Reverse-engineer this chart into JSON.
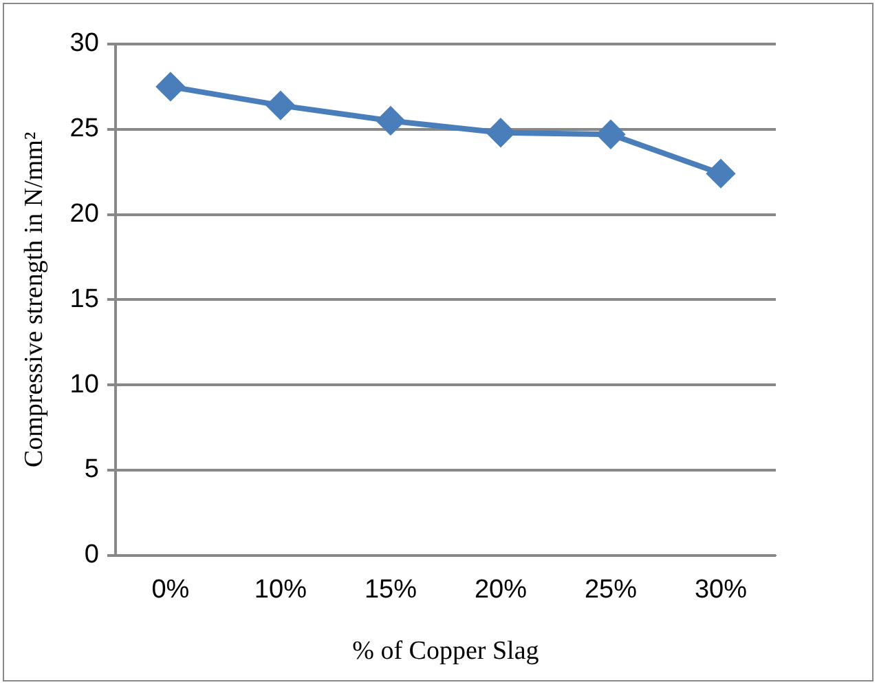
{
  "chart_data": {
    "type": "line",
    "xlabel": "% of Copper Slag",
    "ylabel": "Compressive strength in N/mm²",
    "categories": [
      "0%",
      "10%",
      "15%",
      "20%",
      "25%",
      "30%"
    ],
    "series": [
      {
        "color": "#4a7ebb",
        "values": [
          27.5,
          26.4,
          25.5,
          24.8,
          24.7,
          22.4
        ]
      }
    ],
    "ylim": [
      0,
      30
    ],
    "yticks": [
      0,
      5,
      10,
      15,
      20,
      25,
      30
    ],
    "grid": "y",
    "legend": false,
    "marker": "diamond",
    "line_style": "solid"
  }
}
